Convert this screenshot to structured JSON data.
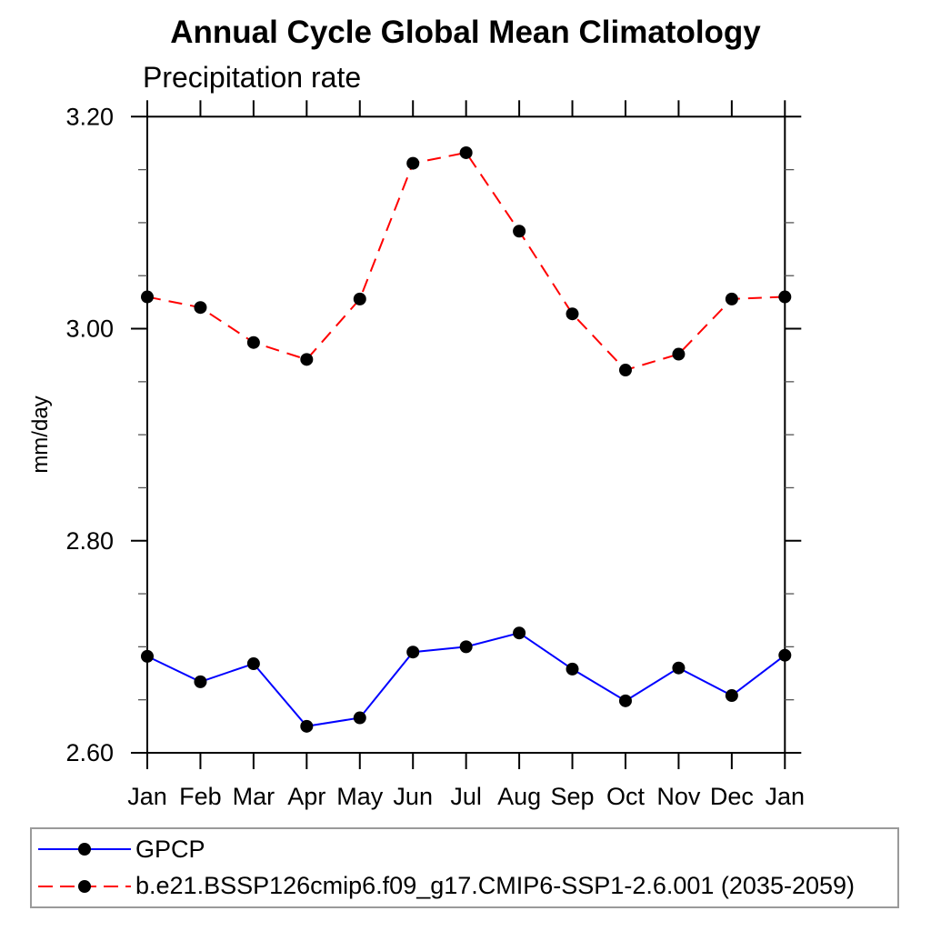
{
  "chart_data": {
    "type": "line",
    "title": "Annual Cycle Global Mean Climatology",
    "subtitle": "Precipitation rate",
    "ylabel": "mm/day",
    "categories": [
      "Jan",
      "Feb",
      "Mar",
      "Apr",
      "May",
      "Jun",
      "Jul",
      "Aug",
      "Sep",
      "Oct",
      "Nov",
      "Dec",
      "Jan"
    ],
    "ylim": [
      2.6,
      3.2
    ],
    "yticks_major": [
      2.6,
      2.8,
      3.0,
      3.2
    ],
    "ytick_labels": [
      "2.60",
      "2.80",
      "3.00",
      "3.20"
    ],
    "y_minor_step": 0.05,
    "grid": false,
    "legend_position": "bottom-left-box",
    "marker": "filled-circle",
    "marker_color": "#000000",
    "series": [
      {
        "name": "GPCP",
        "color": "#0000ff",
        "line_style": "solid",
        "values": [
          2.691,
          2.667,
          2.684,
          2.625,
          2.633,
          2.695,
          2.7,
          2.713,
          2.679,
          2.649,
          2.68,
          2.654,
          2.692
        ]
      },
      {
        "name": "b.e21.BSSP126cmip6.f09_g17.CMIP6-SSP1-2.6.001 (2035-2059)",
        "color": "#ff0000",
        "line_style": "dashed",
        "values": [
          3.03,
          3.02,
          2.987,
          2.971,
          3.028,
          3.156,
          3.166,
          3.092,
          3.014,
          2.961,
          2.976,
          3.028,
          3.03
        ]
      }
    ]
  }
}
